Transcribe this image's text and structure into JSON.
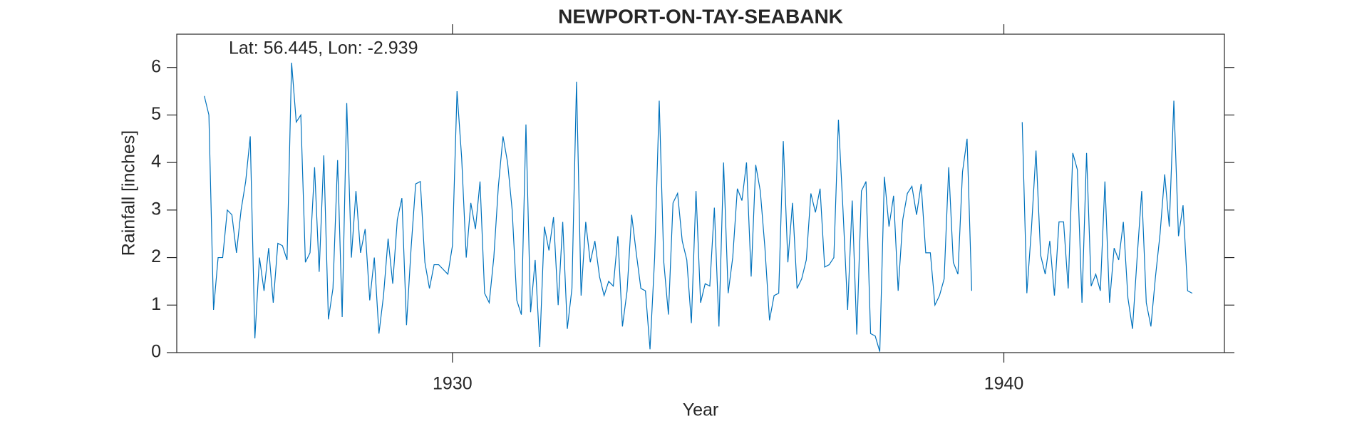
{
  "chart_data": {
    "type": "line",
    "title": "NEWPORT-ON-TAY-SEABANK",
    "annotation": "Lat: 56.445, Lon: -2.939",
    "xlabel": "Year",
    "ylabel": "Rainfall [inches]",
    "color": "#0072bd",
    "xlim": [
      1925,
      1944
    ],
    "ylim": [
      0,
      6.7
    ],
    "xticks": [
      1930,
      1940
    ],
    "yticks": [
      0,
      1,
      2,
      3,
      4,
      5,
      6
    ],
    "x": [
      1925.5,
      1925.583,
      1925.667,
      1925.75,
      1925.833,
      1925.917,
      1926,
      1926.083,
      1926.167,
      1926.25,
      1926.333,
      1926.417,
      1926.5,
      1926.583,
      1926.667,
      1926.75,
      1926.833,
      1926.917,
      1927,
      1927.083,
      1927.167,
      1927.25,
      1927.333,
      1927.417,
      1927.5,
      1927.583,
      1927.667,
      1927.75,
      1927.833,
      1927.917,
      1928,
      1928.083,
      1928.167,
      1928.25,
      1928.333,
      1928.417,
      1928.5,
      1928.583,
      1928.667,
      1928.75,
      1928.833,
      1928.917,
      1929,
      1929.083,
      1929.167,
      1929.25,
      1929.333,
      1929.417,
      1929.5,
      1929.583,
      1929.667,
      1929.75,
      1929.833,
      1929.917,
      1930,
      1930.083,
      1930.167,
      1930.25,
      1930.333,
      1930.417,
      1930.5,
      1930.583,
      1930.667,
      1930.75,
      1930.833,
      1930.917,
      1931,
      1931.083,
      1931.167,
      1931.25,
      1931.333,
      1931.417,
      1931.5,
      1931.583,
      1931.667,
      1931.75,
      1931.833,
      1931.917,
      1932,
      1932.083,
      1932.167,
      1932.25,
      1932.333,
      1932.417,
      1932.5,
      1932.583,
      1932.667,
      1932.75,
      1932.833,
      1932.917,
      1933,
      1933.083,
      1933.167,
      1933.25,
      1933.333,
      1933.417,
      1933.5,
      1933.583,
      1933.667,
      1933.75,
      1933.833,
      1933.917,
      1934,
      1934.083,
      1934.167,
      1934.25,
      1934.333,
      1934.417,
      1934.5,
      1934.583,
      1934.667,
      1934.75,
      1934.833,
      1934.917,
      1935,
      1935.083,
      1935.167,
      1935.25,
      1935.333,
      1935.417,
      1935.5,
      1935.583,
      1935.667,
      1935.75,
      1935.833,
      1935.917,
      1936,
      1936.083,
      1936.167,
      1936.25,
      1936.333,
      1936.417,
      1936.5,
      1936.583,
      1936.667,
      1936.75,
      1936.833,
      1936.917,
      1937,
      1937.083,
      1937.167,
      1937.25,
      1937.333,
      1937.417,
      1937.5,
      1937.583,
      1937.667,
      1937.75,
      1937.833,
      1937.917,
      1938,
      1938.083,
      1938.167,
      1938.25,
      1938.333,
      1938.417,
      1938.5,
      1938.583,
      1938.667,
      1938.75,
      1938.833,
      1938.917,
      1939,
      1939.083,
      1939.167,
      1939.25,
      1939.333,
      1939.417,
      1939.5,
      1939.583,
      1939.667,
      1939.75,
      1939.833,
      1939.917,
      1940,
      1940.083,
      1940.167,
      1940.25,
      1940.333,
      1940.417,
      1940.5,
      1940.583,
      1940.667,
      1940.75,
      1940.833,
      1940.917,
      1941,
      1941.083,
      1941.167,
      1941.25,
      1941.333,
      1941.417,
      1941.5,
      1941.583,
      1941.667,
      1941.75,
      1941.833,
      1941.917,
      1942,
      1942.083,
      1942.167,
      1942.25,
      1942.333,
      1942.417,
      1942.5,
      1942.583,
      1942.667,
      1942.75,
      1942.833,
      1942.917,
      1943,
      1943.083,
      1943.167,
      1943.25,
      1943.333,
      1943.417
    ],
    "values": [
      5.4,
      5.0,
      0.9,
      2.0,
      2.0,
      3.0,
      2.9,
      2.1,
      3.0,
      3.6,
      4.55,
      0.3,
      2.0,
      1.3,
      2.2,
      1.05,
      2.3,
      2.25,
      1.95,
      6.1,
      4.85,
      5.0,
      1.9,
      2.1,
      3.9,
      1.7,
      4.15,
      0.7,
      1.35,
      4.05,
      0.75,
      5.25,
      2.0,
      3.4,
      2.1,
      2.6,
      1.1,
      2.0,
      0.4,
      1.2,
      2.4,
      1.45,
      2.8,
      3.25,
      0.58,
      2.2,
      3.55,
      3.6,
      1.9,
      1.35,
      1.85,
      1.85,
      1.75,
      1.65,
      2.25,
      5.5,
      4.1,
      2.0,
      3.15,
      2.6,
      3.6,
      1.25,
      1.05,
      2.0,
      3.5,
      4.55,
      4.0,
      3.0,
      1.1,
      0.8,
      4.8,
      0.85,
      1.95,
      0.12,
      2.65,
      2.15,
      2.85,
      1.0,
      2.75,
      0.5,
      1.35,
      5.7,
      1.2,
      2.75,
      1.9,
      2.35,
      1.6,
      1.2,
      1.5,
      1.4,
      2.45,
      0.55,
      1.3,
      2.9,
      2.1,
      1.35,
      1.3,
      0.07,
      2.0,
      5.3,
      1.9,
      0.8,
      3.15,
      3.35,
      2.35,
      1.95,
      0.62,
      3.4,
      1.05,
      1.45,
      1.4,
      3.05,
      0.55,
      4.0,
      1.25,
      2.0,
      3.45,
      3.2,
      4.0,
      1.6,
      3.95,
      3.4,
      2.2,
      0.68,
      1.2,
      1.25,
      4.45,
      1.9,
      3.15,
      1.35,
      1.55,
      1.95,
      3.35,
      2.95,
      3.45,
      1.8,
      1.85,
      2.0,
      4.9,
      3.0,
      0.9,
      3.2,
      0.38,
      3.4,
      3.6,
      0.4,
      0.35,
      0.02,
      3.7,
      2.65,
      3.3,
      1.3,
      2.8,
      3.35,
      3.5,
      2.9,
      3.55,
      2.1,
      2.1,
      1.0,
      1.2,
      1.55,
      3.9,
      1.9,
      1.65,
      3.8,
      4.5,
      1.3,
      null,
      null,
      null,
      null,
      null,
      null,
      null,
      null,
      null,
      null,
      4.85,
      1.25,
      2.6,
      4.25,
      2.05,
      1.65,
      2.35,
      1.2,
      2.75,
      2.75,
      1.35,
      4.2,
      3.85,
      1.05,
      4.2,
      1.4,
      1.65,
      1.3,
      3.6,
      1.05,
      2.2,
      1.95,
      2.75,
      1.15,
      0.5,
      2.0,
      3.4,
      1.05,
      0.55,
      1.6,
      2.5,
      3.75,
      2.65,
      5.3,
      2.45,
      3.1,
      1.3,
      1.25
    ]
  }
}
